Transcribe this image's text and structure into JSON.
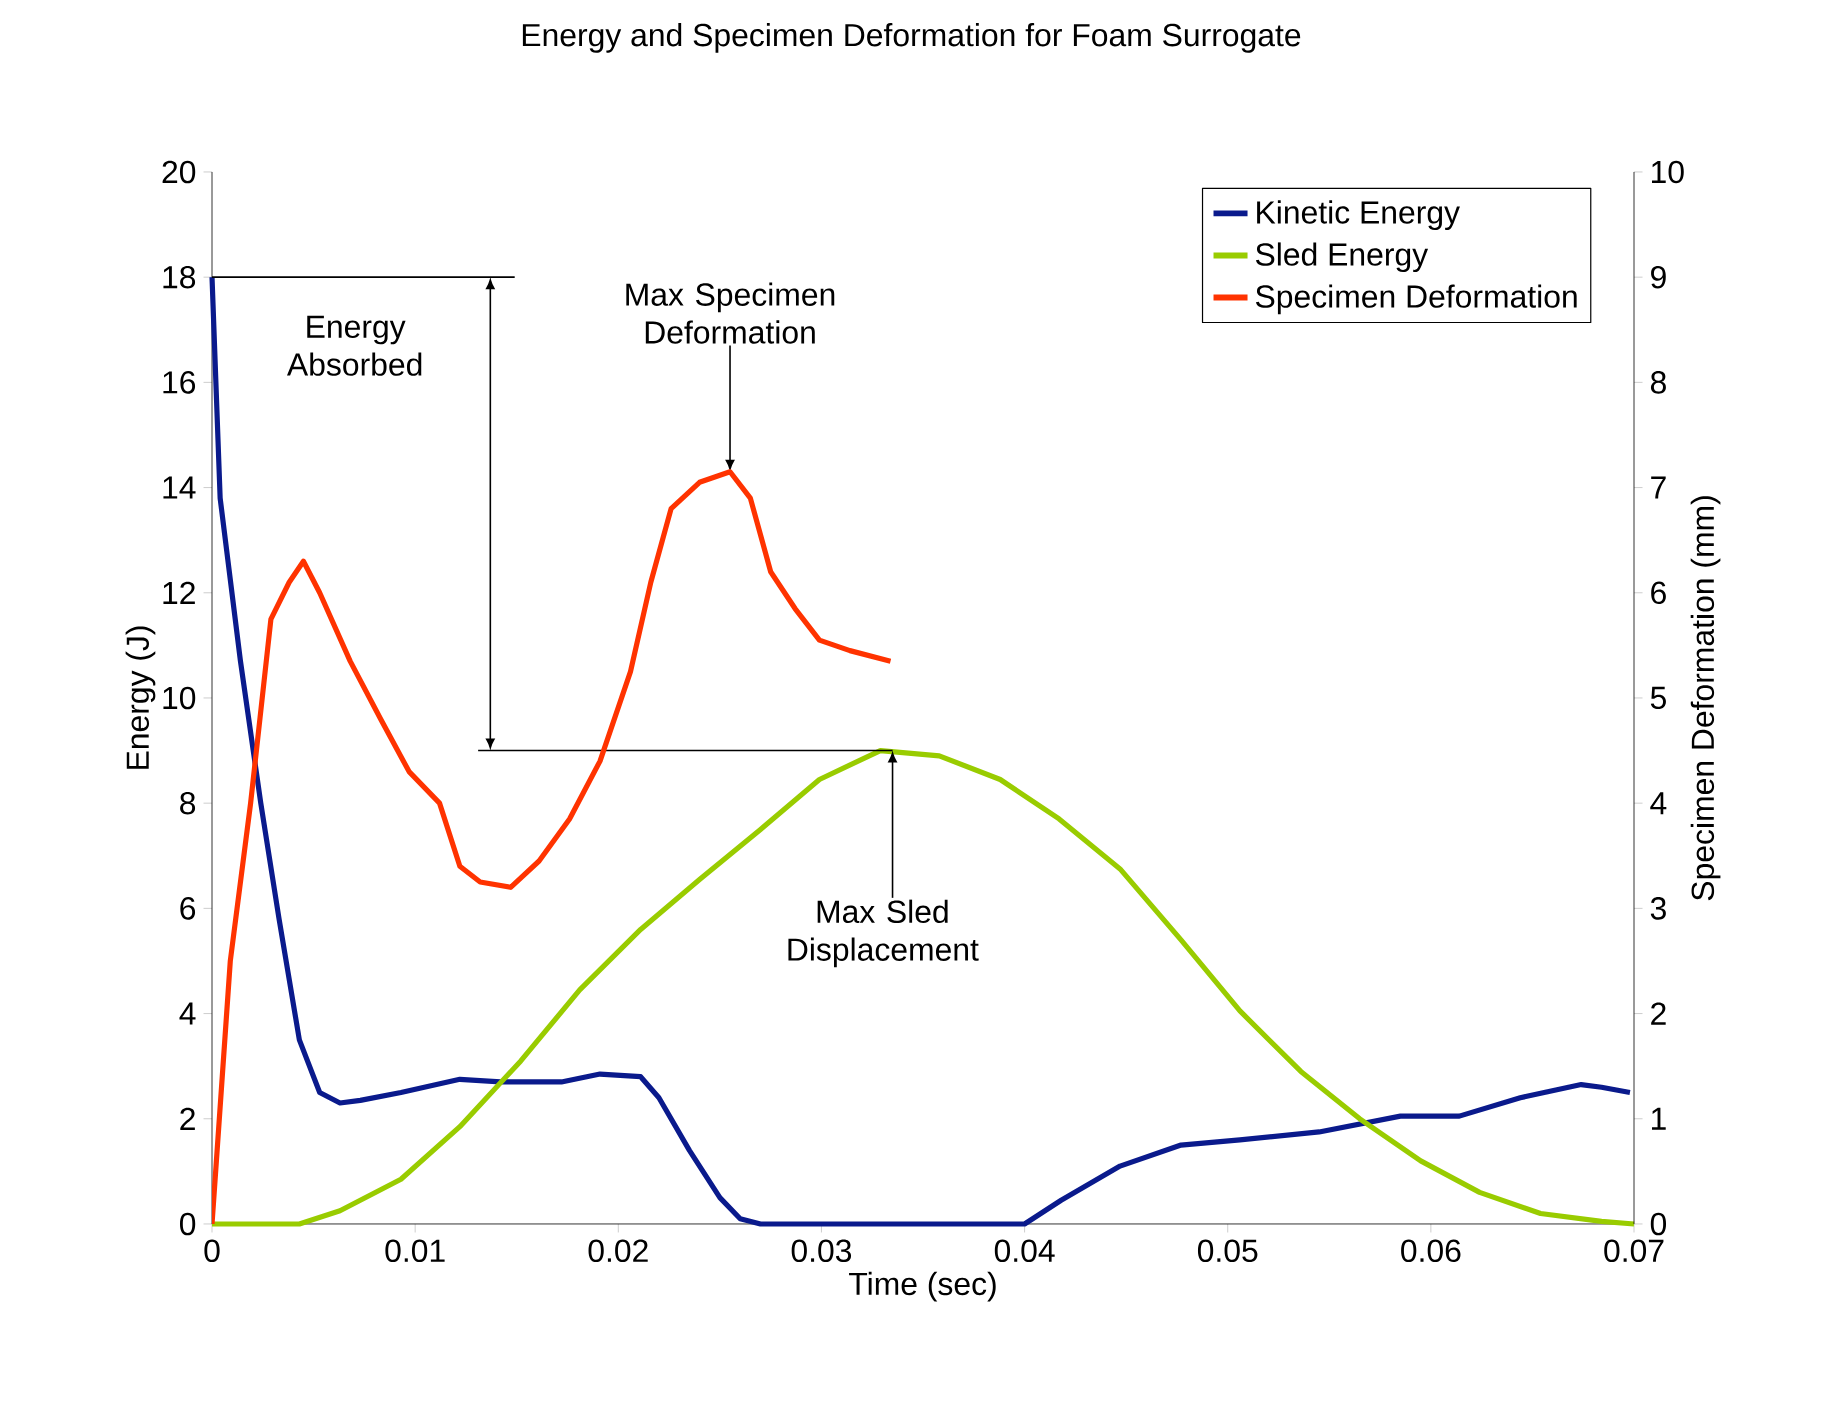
{
  "chart_data": {
    "type": "line",
    "title": "Energy and Specimen Deformation for Foam Surrogate",
    "xlabel": "Time (sec)",
    "ylabel": "Energy (J)",
    "y2label": "Specimen Deformation (mm)",
    "xlim": [
      0,
      0.07
    ],
    "xticks": [
      0,
      0.01,
      0.02,
      0.03,
      0.04,
      0.05,
      0.06,
      0.07
    ],
    "ylim": [
      0,
      20
    ],
    "yticks": [
      0,
      2,
      4,
      6,
      8,
      10,
      12,
      14,
      16,
      18,
      20
    ],
    "y2lim": [
      0,
      10
    ],
    "y2ticks": [
      0,
      1,
      2,
      3,
      4,
      5,
      6,
      7,
      8,
      9,
      10
    ],
    "legend": "top right",
    "ref_lines": [
      {
        "axis": "y",
        "value": 18
      },
      {
        "axis": "y",
        "value": 9
      }
    ],
    "line_style": "solid",
    "grid": false,
    "series": [
      {
        "name": "Kinetic Energy",
        "color": "#0a1a8c",
        "axis": "y",
        "x": [
          0,
          0.0004,
          0.0014,
          0.0024,
          0.0033,
          0.0043,
          0.0053,
          0.0063,
          0.0073,
          0.0093,
          0.0122,
          0.0142,
          0.0172,
          0.0191,
          0.0211,
          0.022,
          0.0235,
          0.025,
          0.026,
          0.027,
          0.04,
          0.0418,
          0.0447,
          0.0477,
          0.0506,
          0.0545,
          0.0585,
          0.0614,
          0.0644,
          0.0674,
          0.0684,
          0.0698
        ],
        "values": [
          18,
          13.8,
          10.7,
          8,
          5.8,
          3.5,
          2.5,
          2.3,
          2.35,
          2.5,
          2.75,
          2.7,
          2.7,
          2.85,
          2.8,
          2.4,
          1.4,
          0.5,
          0.1,
          0,
          0,
          0.45,
          1.1,
          1.5,
          1.6,
          1.75,
          2.05,
          2.05,
          2.4,
          2.65,
          2.6,
          2.5
        ]
      },
      {
        "name": "Sled Energy",
        "color": "#99cc00",
        "axis": "y",
        "x": [
          0,
          0.0043,
          0.0063,
          0.0093,
          0.0122,
          0.0152,
          0.0181,
          0.0211,
          0.024,
          0.027,
          0.0299,
          0.0329,
          0.0358,
          0.0388,
          0.0417,
          0.0447,
          0.0477,
          0.0506,
          0.0536,
          0.0565,
          0.0595,
          0.0624,
          0.0654,
          0.0684,
          0.07
        ],
        "values": [
          0,
          0,
          0.25,
          0.85,
          1.85,
          3.1,
          4.45,
          5.6,
          6.55,
          7.5,
          8.45,
          9.0,
          8.9,
          8.45,
          7.7,
          6.75,
          5.4,
          4.05,
          2.9,
          2.0,
          1.2,
          0.6,
          0.2,
          0.05,
          0
        ]
      },
      {
        "name": "Specimen Deformation",
        "color": "#ff3300",
        "axis": "y2",
        "x": [
          0,
          0.0009,
          0.0019,
          0.0029,
          0.0038,
          0.0045,
          0.0053,
          0.0068,
          0.0083,
          0.0097,
          0.0112,
          0.0122,
          0.0132,
          0.0147,
          0.0161,
          0.0176,
          0.0191,
          0.0206,
          0.0216,
          0.0226,
          0.024,
          0.0255,
          0.0265,
          0.0275,
          0.0287,
          0.0299,
          0.0314,
          0.0334
        ],
        "values": [
          0,
          2.5,
          4,
          5.75,
          6.1,
          6.3,
          6.0,
          5.35,
          4.8,
          4.3,
          4.0,
          3.4,
          3.25,
          3.2,
          3.45,
          3.85,
          4.4,
          5.25,
          6.1,
          6.8,
          7.05,
          7.15,
          6.9,
          6.2,
          5.85,
          5.55,
          5.45,
          5.35
        ]
      }
    ],
    "annotations": [
      "Energy Absorbed",
      {
        "text": "Max Specimen Deformation",
        "x": 0.0255,
        "y": 14.3
      },
      {
        "text": "Max Sled Displacement",
        "x": 0.0335,
        "y": 9
      }
    ]
  }
}
